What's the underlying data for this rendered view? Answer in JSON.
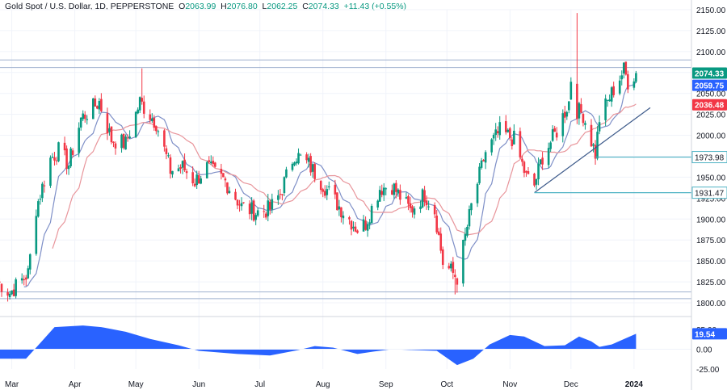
{
  "header": {
    "symbol": "Gold Spot / U.S. Dollar, 1D, PEPPERSTONE",
    "open_label": "O",
    "open": "2063.99",
    "high_label": "H",
    "high": "2076.80",
    "low_label": "L",
    "low": "2062.25",
    "close_label": "C",
    "close": "2074.33",
    "change": "+11.43 (+0.55%)"
  },
  "colors": {
    "up": "#089981",
    "down": "#f23645",
    "sma_fast": "#7e8fc7",
    "sma_slow": "#e8959b",
    "level": "#4fb3c4",
    "hline": "#9fb1cf",
    "trend": "#3d5a8a",
    "osc": "#2962ff",
    "axis_text": "#131722",
    "grid": "#f0f3fa"
  },
  "chart_data": [
    {
      "type": "candlestick",
      "title": "Gold Spot / U.S. Dollar, 1D, PEPPERSTONE",
      "ylim": [
        1800,
        2150
      ],
      "y_ticks": [
        "2150.00",
        "2125.00",
        "2100.00",
        "2075.00",
        "2050.00",
        "2025.00",
        "2000.00",
        "1975.00",
        "1950.00",
        "1925.00",
        "1900.00",
        "1875.00",
        "1850.00",
        "1825.00",
        "1800.00"
      ],
      "x_labels": [
        {
          "date": "2023-03-01",
          "label": "Mar"
        },
        {
          "date": "2023-04-01",
          "label": "Apr"
        },
        {
          "date": "2023-05-01",
          "label": "May"
        },
        {
          "date": "2023-06-01",
          "label": "Jun"
        },
        {
          "date": "2023-07-01",
          "label": "Jul"
        },
        {
          "date": "2023-08-01",
          "label": "Aug"
        },
        {
          "date": "2023-09-01",
          "label": "Sep"
        },
        {
          "date": "2023-10-01",
          "label": "Oct"
        },
        {
          "date": "2023-11-01",
          "label": "Nov"
        },
        {
          "date": "2023-12-01",
          "label": "Dec"
        },
        {
          "date": "2024-01-01",
          "label": "2024"
        }
      ],
      "anchors": [
        {
          "date": "2023-02-22",
          "close": 1826
        },
        {
          "date": "2023-02-28",
          "close": 1812
        },
        {
          "date": "2023-03-09",
          "close": 1835
        },
        {
          "date": "2023-03-13",
          "close": 1913
        },
        {
          "date": "2023-03-20",
          "close": 1972
        },
        {
          "date": "2023-03-24",
          "close": 1982
        },
        {
          "date": "2023-03-29",
          "close": 1965
        },
        {
          "date": "2023-04-04",
          "close": 2020
        },
        {
          "date": "2023-04-13",
          "close": 2040
        },
        {
          "date": "2023-04-19",
          "close": 1995
        },
        {
          "date": "2023-04-26",
          "close": 1990
        },
        {
          "date": "2023-05-03",
          "close": 2040
        },
        {
          "date": "2023-05-11",
          "close": 2015
        },
        {
          "date": "2023-05-18",
          "close": 1958
        },
        {
          "date": "2023-05-24",
          "close": 1962
        },
        {
          "date": "2023-05-30",
          "close": 1945
        },
        {
          "date": "2023-06-05",
          "close": 1962
        },
        {
          "date": "2023-06-14",
          "close": 1945
        },
        {
          "date": "2023-06-22",
          "close": 1915
        },
        {
          "date": "2023-06-29",
          "close": 1908
        },
        {
          "date": "2023-07-06",
          "close": 1912
        },
        {
          "date": "2023-07-11",
          "close": 1930
        },
        {
          "date": "2023-07-18",
          "close": 1978
        },
        {
          "date": "2023-07-25",
          "close": 1965
        },
        {
          "date": "2023-08-03",
          "close": 1935
        },
        {
          "date": "2023-08-10",
          "close": 1912
        },
        {
          "date": "2023-08-18",
          "close": 1888
        },
        {
          "date": "2023-08-22",
          "close": 1895
        },
        {
          "date": "2023-08-29",
          "close": 1937
        },
        {
          "date": "2023-09-04",
          "close": 1940
        },
        {
          "date": "2023-09-13",
          "close": 1910
        },
        {
          "date": "2023-09-20",
          "close": 1930
        },
        {
          "date": "2023-09-25",
          "close": 1910
        },
        {
          "date": "2023-09-29",
          "close": 1848
        },
        {
          "date": "2023-10-06",
          "close": 1830
        },
        {
          "date": "2023-10-13",
          "close": 1915
        },
        {
          "date": "2023-10-20",
          "close": 1980
        },
        {
          "date": "2023-10-27",
          "close": 2005
        },
        {
          "date": "2023-11-03",
          "close": 1995
        },
        {
          "date": "2023-11-09",
          "close": 1950
        },
        {
          "date": "2023-11-13",
          "close": 1940
        },
        {
          "date": "2023-11-17",
          "close": 1975
        },
        {
          "date": "2023-11-24",
          "close": 2005
        },
        {
          "date": "2023-11-30",
          "close": 2040
        },
        {
          "date": "2023-12-01",
          "close": 2068
        },
        {
          "date": "2023-12-04",
          "close": 2030
        },
        {
          "date": "2023-12-07",
          "close": 2025
        },
        {
          "date": "2023-12-13",
          "close": 1978
        },
        {
          "date": "2023-12-15",
          "close": 2020
        },
        {
          "date": "2023-12-22",
          "close": 2055
        },
        {
          "date": "2023-12-27",
          "close": 2078
        },
        {
          "date": "2023-12-29",
          "close": 2064
        },
        {
          "date": "2024-01-02",
          "close": 2074.33
        }
      ],
      "wicks": [
        {
          "date": "2023-05-04",
          "high": 2080
        },
        {
          "date": "2023-12-04",
          "high": 2146
        },
        {
          "date": "2023-12-28",
          "high": 2088
        },
        {
          "date": "2023-02-28",
          "low": 1804
        },
        {
          "date": "2023-10-05",
          "low": 1810
        },
        {
          "date": "2023-10-06",
          "low": 1812
        }
      ],
      "last_bar": {
        "date": "2024-01-02",
        "open": 2063.99,
        "high": 2076.8,
        "low": 2062.25,
        "close": 2074.33
      },
      "series": [
        {
          "type": "line",
          "moving_average_period": 10
        },
        {
          "type": "line",
          "moving_average_period": 20
        }
      ],
      "resistance_lines": [
        2090,
        2081
      ],
      "support_lines": [
        1813,
        1805
      ],
      "levels": [
        {
          "value": 1973.98,
          "label": "1973.98",
          "from_date": "2023-12-13"
        },
        {
          "value": 1931.47,
          "label": "1931.47",
          "from_date": "2023-11-13"
        }
      ],
      "trendline": {
        "from": {
          "date": "2023-11-13",
          "value": 1931.47
        },
        "to": {
          "date": "2024-01-09",
          "value": 2033
        }
      },
      "price_labels": [
        {
          "value": 2074.33,
          "label": "2074.33",
          "color": "#089981"
        },
        {
          "value": 2059.75,
          "label": "2059.75",
          "color": "#2962ff"
        },
        {
          "value": 2036.48,
          "label": "2036.48",
          "color": "#f23645"
        }
      ]
    },
    {
      "type": "area",
      "ylim": [
        -25,
        25
      ],
      "y_ticks": [
        "25.00",
        "0.00",
        "-25.00"
      ],
      "last_value": 19.54,
      "last_label": "19.54",
      "points": [
        {
          "date": "2023-02-22",
          "value": -12
        },
        {
          "date": "2023-03-08",
          "value": -12
        },
        {
          "date": "2023-03-15",
          "value": 8
        },
        {
          "date": "2023-03-22",
          "value": 28
        },
        {
          "date": "2023-04-05",
          "value": 30
        },
        {
          "date": "2023-04-14",
          "value": 28
        },
        {
          "date": "2023-04-26",
          "value": 22
        },
        {
          "date": "2023-05-08",
          "value": 13
        },
        {
          "date": "2023-05-22",
          "value": 5
        },
        {
          "date": "2023-06-01",
          "value": -2
        },
        {
          "date": "2023-06-20",
          "value": -6
        },
        {
          "date": "2023-07-06",
          "value": -8
        },
        {
          "date": "2023-07-20",
          "value": -1
        },
        {
          "date": "2023-07-28",
          "value": 4
        },
        {
          "date": "2023-08-06",
          "value": 2
        },
        {
          "date": "2023-08-18",
          "value": -6
        },
        {
          "date": "2023-08-26",
          "value": -3
        },
        {
          "date": "2023-09-04",
          "value": 0
        },
        {
          "date": "2023-09-14",
          "value": -1
        },
        {
          "date": "2023-09-26",
          "value": -2
        },
        {
          "date": "2023-10-06",
          "value": -20
        },
        {
          "date": "2023-10-14",
          "value": -12
        },
        {
          "date": "2023-10-22",
          "value": 6
        },
        {
          "date": "2023-11-01",
          "value": 18
        },
        {
          "date": "2023-11-08",
          "value": 16
        },
        {
          "date": "2023-11-18",
          "value": 4
        },
        {
          "date": "2023-11-28",
          "value": 5
        },
        {
          "date": "2023-12-05",
          "value": 16
        },
        {
          "date": "2023-12-11",
          "value": 10
        },
        {
          "date": "2023-12-15",
          "value": 3
        },
        {
          "date": "2023-12-21",
          "value": 6
        },
        {
          "date": "2024-01-02",
          "value": 19.54
        }
      ]
    }
  ]
}
